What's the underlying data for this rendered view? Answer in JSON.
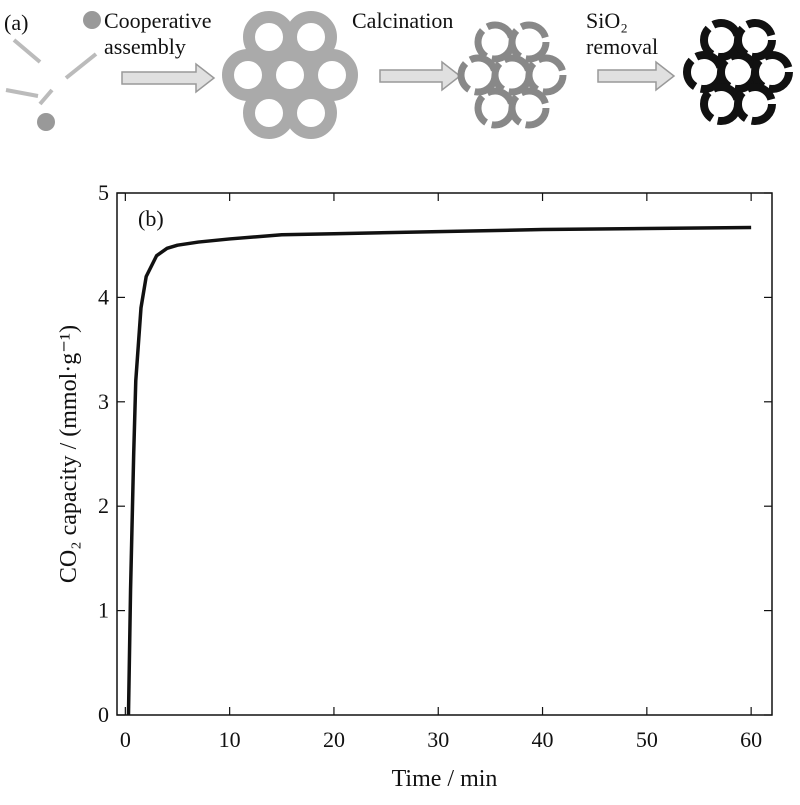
{
  "schematic": {
    "label": "(a)",
    "steps": [
      [
        "Cooperative",
        "assembly"
      ],
      [
        "Calcination"
      ],
      [
        "SiO₂",
        "removal"
      ]
    ]
  },
  "chart_data": {
    "type": "line",
    "annotation": "(b)",
    "x_label": "Time / min",
    "y_label": "CO₂ capacity / (mmol·g⁻¹)",
    "x": [
      0.3,
      0.5,
      0.8,
      1,
      1.5,
      2,
      3,
      4,
      5,
      7,
      10,
      15,
      20,
      30,
      40,
      50,
      60
    ],
    "values": [
      0,
      1.2,
      2.5,
      3.2,
      3.9,
      4.2,
      4.4,
      4.47,
      4.5,
      4.53,
      4.56,
      4.6,
      4.61,
      4.63,
      4.65,
      4.66,
      4.67
    ],
    "color": "#111111",
    "xlim": [
      -0.8,
      62
    ],
    "ylim": [
      0,
      5
    ],
    "xticks": [
      0,
      10,
      20,
      30,
      40,
      50,
      60
    ],
    "yticks": [
      0,
      1,
      2,
      3,
      4,
      5
    ]
  }
}
